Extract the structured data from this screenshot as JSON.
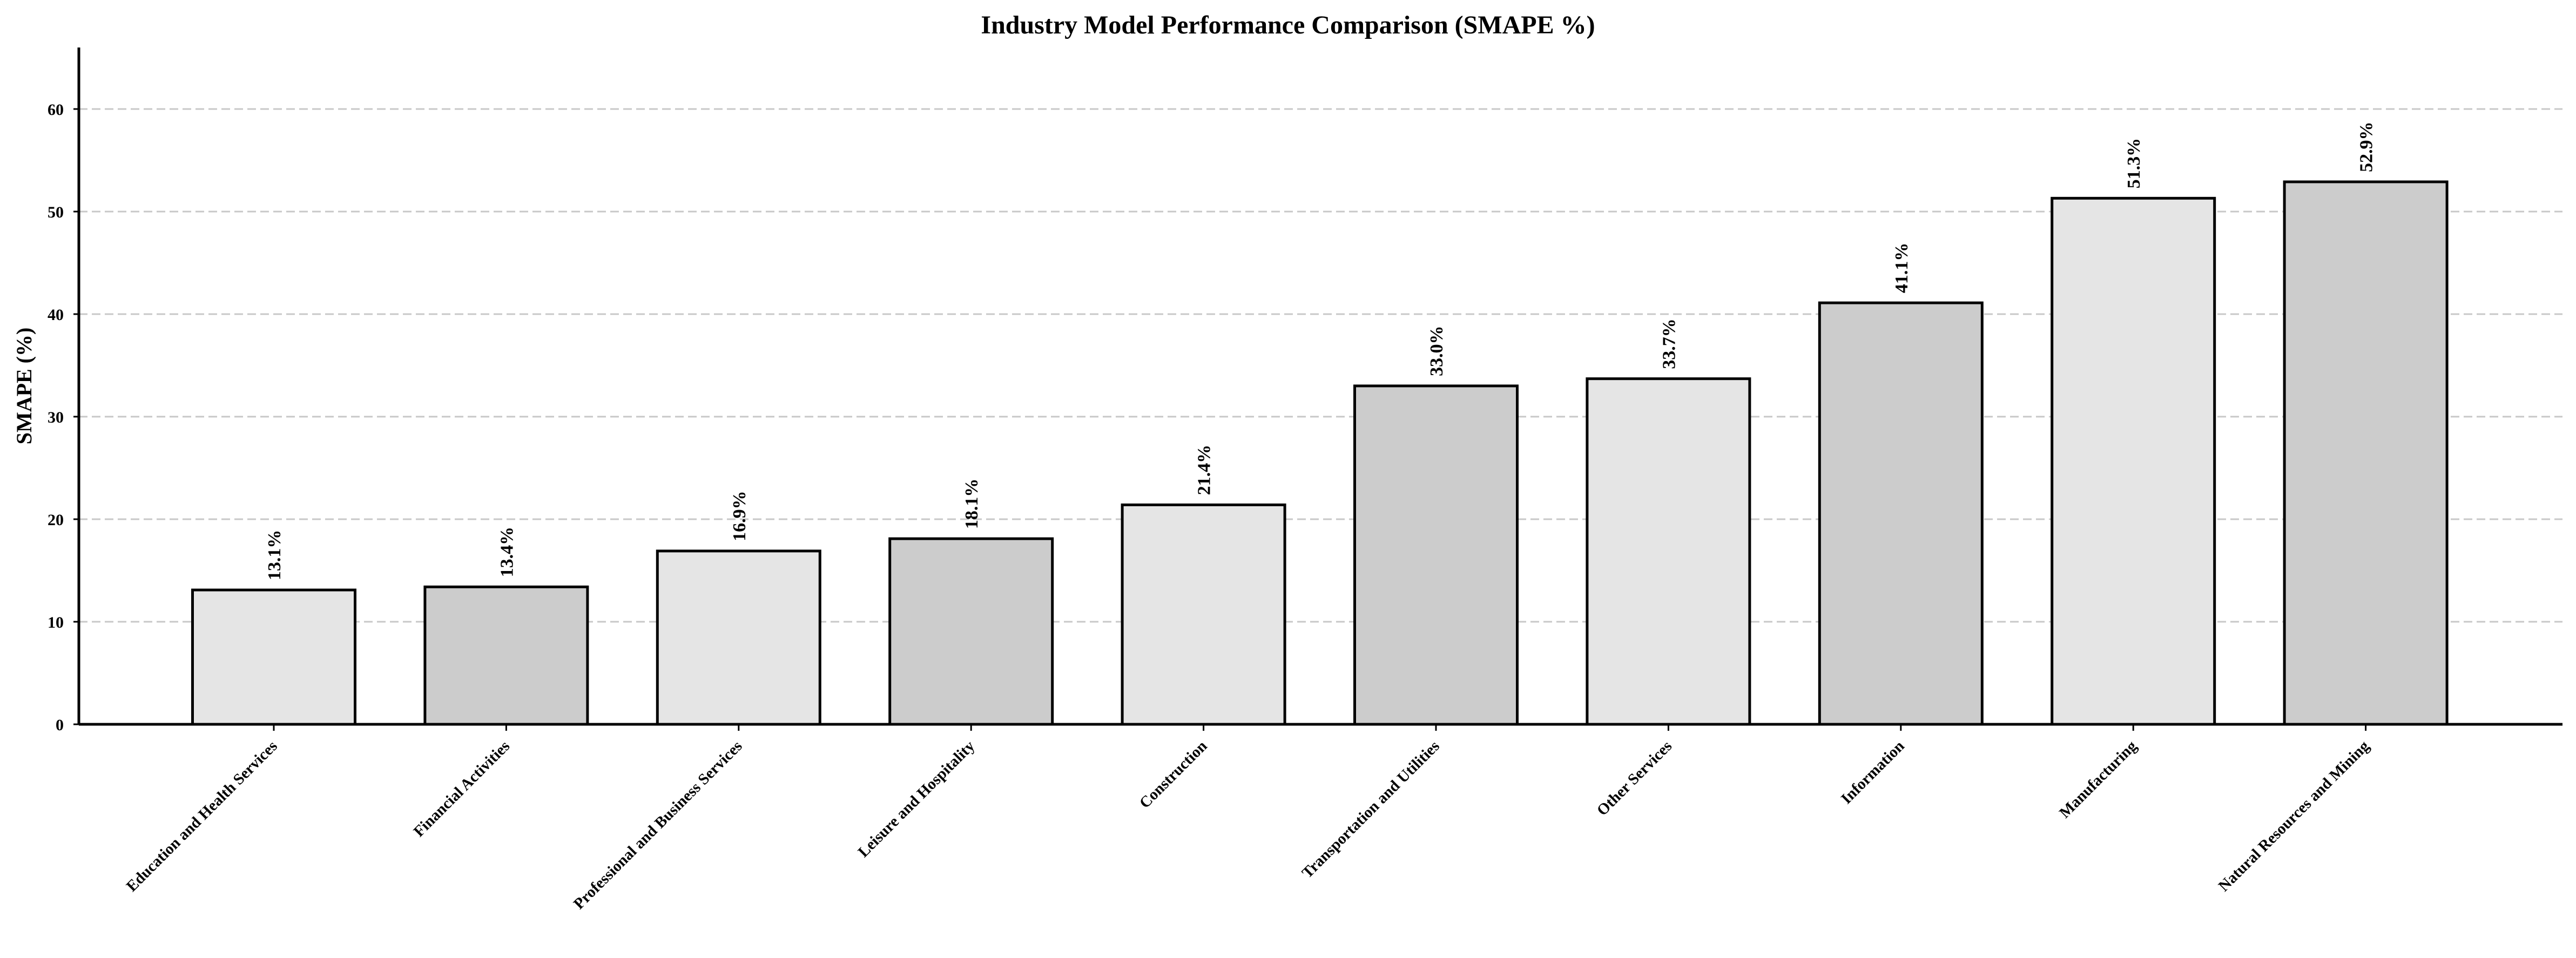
{
  "chart_data": {
    "type": "bar",
    "title": "Industry Model Performance Comparison (SMAPE %)",
    "xlabel": "",
    "ylabel": "SMAPE (%)",
    "ylim": [
      0,
      66
    ],
    "yticks": [
      0,
      10,
      20,
      30,
      40,
      50,
      60
    ],
    "grid": true,
    "grid_axis": "y",
    "categories": [
      "Education and Health Services",
      "Financial Activities",
      "Professional and Business Services",
      "Leisure and Hospitality",
      "Construction",
      "Transportation and Utilities",
      "Other Services",
      "Information",
      "Manufacturing",
      "Natural Resources and Mining"
    ],
    "values": [
      13.1,
      13.4,
      16.9,
      18.1,
      21.4,
      33.0,
      33.7,
      41.1,
      51.3,
      52.9
    ],
    "data_labels": [
      "13.1%",
      "13.4%",
      "16.9%",
      "18.1%",
      "21.4%",
      "33.0%",
      "33.7%",
      "41.1%",
      "51.3%",
      "52.9%"
    ],
    "colors": [
      "#e5e5e5",
      "#cccccc",
      "#e5e5e5",
      "#cccccc",
      "#e5e5e5",
      "#cccccc",
      "#e5e5e5",
      "#cccccc",
      "#e5e5e5",
      "#cccccc"
    ],
    "edge_color": "#000000",
    "grid_color": "#c8c8c8"
  }
}
